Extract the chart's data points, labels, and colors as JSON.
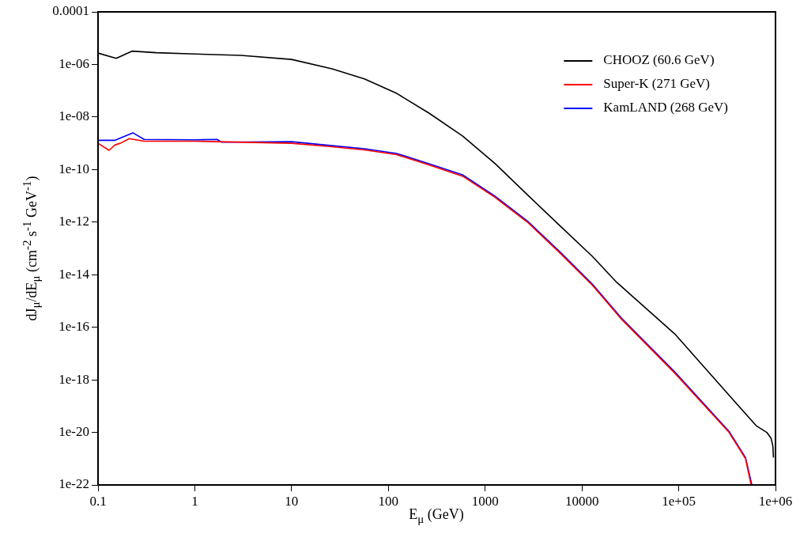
{
  "chart_data": {
    "type": "line",
    "xlabel": "E$_{μ}$ (GeV)",
    "ylabel": "dJ$_{μ}$/dE$_{μ}$ (cm$^{-2}$ s$^{-1}$ GeV$^{-1}$)",
    "log": "xy",
    "grid": false,
    "legend": "top right",
    "marker": "none",
    "line_style": "solid",
    "xlim": [
      0.1,
      1000000
    ],
    "ylim": [
      1e-22,
      0.0001
    ],
    "xticks": [
      0.1,
      1,
      10,
      100,
      1000,
      10000,
      {
        "value": 100000,
        "label": "1e+05"
      },
      {
        "value": 1000000,
        "label": "1e+06"
      }
    ],
    "yticks": [
      {
        "value": 1e-22,
        "label": "1e-22"
      },
      {
        "value": 1e-20,
        "label": "1e-20"
      },
      {
        "value": 1e-18,
        "label": "1e-18"
      },
      {
        "value": 1e-16,
        "label": "1e-16"
      },
      {
        "value": 1e-14,
        "label": "1e-14"
      },
      {
        "value": 1e-12,
        "label": "1e-12"
      },
      {
        "value": 1e-10,
        "label": "1e-10"
      },
      {
        "value": 1e-08,
        "label": "1e-08"
      },
      {
        "value": 1e-06,
        "label": "1e-06"
      },
      {
        "value": 0.0001,
        "label": "0.0001"
      }
    ],
    "series": [
      {
        "name": "CHOOZ (60.6 GeV)",
        "color": "#000000",
        "x": [
          0.1,
          0.154,
          0.224,
          0.4,
          1,
          3,
          10,
          26.2,
          56.6,
          122,
          263,
          584,
          1262,
          2730,
          5900,
          12800,
          22900,
          91000,
          331000,
          631000,
          813000,
          900000,
          940000,
          953000
        ],
        "values": [
          2.7e-06,
          1.7e-06,
          3.2e-06,
          2.8e-06,
          2.5e-06,
          2.2e-06,
          1.55e-06,
          6.8e-07,
          2.8e-07,
          7.9e-08,
          1.4e-08,
          1.9e-09,
          1.7e-10,
          1.1e-11,
          7.4e-13,
          5e-14,
          5.1e-15,
          5.6e-17,
          2.6e-19,
          1.8e-20,
          1e-20,
          6e-21,
          3e-21,
          1.1e-21
        ]
      },
      {
        "name": "Super-K (271 GeV)",
        "color": "#ff0000",
        "x": [
          0.1,
          0.13,
          0.15,
          0.17,
          0.21,
          0.3,
          1,
          10,
          26.2,
          56.6,
          122,
          263,
          584,
          1262,
          2730,
          5900,
          12800,
          25700,
          91000,
          331000,
          490000,
          560000
        ],
        "values": [
          1e-09,
          5.4e-10,
          8.7e-10,
          1e-09,
          1.5e-09,
          1.2e-09,
          1.2e-09,
          1e-09,
          7.4e-10,
          5.6e-10,
          3.7e-10,
          1.5e-10,
          5.6e-11,
          8.8e-12,
          1e-12,
          6.8e-14,
          4e-15,
          2e-16,
          1.8e-18,
          1e-20,
          1e-21,
          1e-22
        ]
      },
      {
        "name": "KamLAND (268 GeV)",
        "color": "#0000ff",
        "x": [
          0.1,
          0.15,
          0.229,
          0.3,
          1,
          1.7,
          1.9,
          10,
          26.2,
          56.6,
          122,
          263,
          584,
          1262,
          2730,
          5900,
          12800,
          25700,
          91000,
          331000,
          490000,
          570000
        ],
        "values": [
          1.3e-09,
          1.3e-09,
          2.5e-09,
          1.4e-09,
          1.35e-09,
          1.4e-09,
          1.1e-09,
          1.15e-09,
          8.1e-10,
          6.2e-10,
          4.1e-10,
          1.66e-10,
          6.3e-11,
          9.8e-12,
          1.1e-12,
          7.6e-14,
          4.4e-15,
          2.2e-16,
          2e-18,
          1.1e-20,
          1.1e-21,
          1e-22
        ]
      }
    ]
  }
}
